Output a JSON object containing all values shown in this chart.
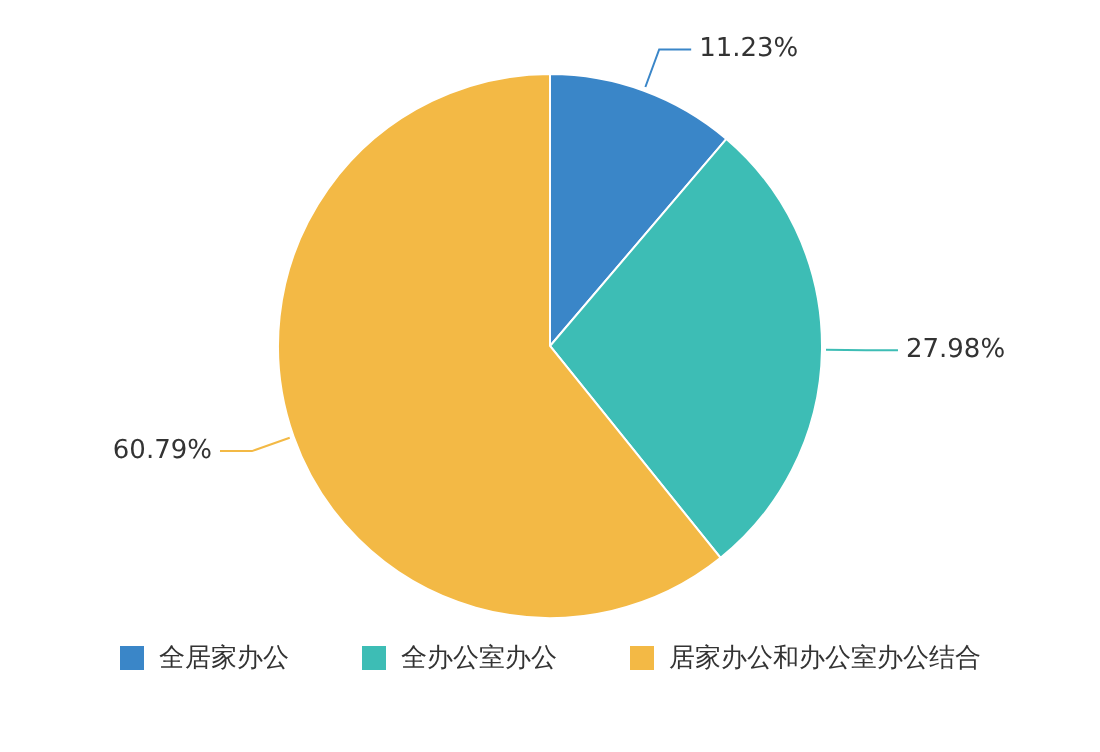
{
  "chart_data": {
    "type": "pie",
    "categories": [
      "全居家办公",
      "全办公室办公",
      "居家办公和办公室办公结合"
    ],
    "values": [
      11.23,
      27.98,
      60.79
    ],
    "colors": [
      "#3a86c8",
      "#3dbdb5",
      "#f3b945"
    ],
    "value_labels": [
      "11.23%",
      "27.98%",
      "60.79%"
    ],
    "legend": "bottom"
  }
}
